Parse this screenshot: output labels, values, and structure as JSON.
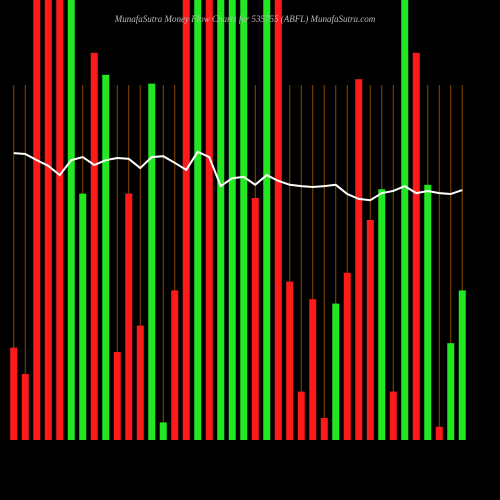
{
  "chart_data": {
    "type": "bar",
    "title": "MunafaSutra Money Flow Charts for 535755 (ABFL) MunafaSutra.com",
    "categories": [
      null,
      null,
      null,
      null,
      null,
      null,
      null,
      null,
      null,
      null,
      null,
      null,
      null,
      null,
      null,
      null,
      null,
      null,
      null,
      null,
      null,
      null,
      null,
      null,
      null,
      null,
      null,
      null,
      null,
      null,
      null,
      null,
      null,
      null,
      null,
      null,
      null,
      null,
      null,
      null
    ],
    "values": [
      21,
      15,
      100,
      100,
      100,
      100,
      56,
      88,
      83,
      20,
      56,
      26,
      81,
      4,
      34,
      100,
      100,
      100,
      100,
      100,
      100,
      55,
      100,
      100,
      36,
      11,
      32,
      5,
      31,
      38,
      82,
      50,
      57,
      11,
      100,
      88,
      58,
      3,
      22,
      34
    ],
    "colors": [
      "#ff1a1a",
      "#ff1a1a",
      "#ff1a1a",
      "#ff1a1a",
      "#ff1a1a",
      "#22e822",
      "#22e822",
      "#ff1a1a",
      "#22e822",
      "#ff1a1a",
      "#ff1a1a",
      "#ff1a1a",
      "#22e822",
      "#22e822",
      "#ff1a1a",
      "#ff1a1a",
      "#22e822",
      "#ff1a1a",
      "#22e822",
      "#22e822",
      "#22e822",
      "#ff1a1a",
      "#22e822",
      "#ff1a1a",
      "#ff1a1a",
      "#ff1a1a",
      "#ff1a1a",
      "#ff1a1a",
      "#22e822",
      "#ff1a1a",
      "#ff1a1a",
      "#ff1a1a",
      "#22e822",
      "#ff1a1a",
      "#22e822",
      "#ff1a1a",
      "#22e822",
      "#ff1a1a",
      "#22e822",
      "#22e822"
    ],
    "line": {
      "color": "#ffffff",
      "values": [
        65.2,
        65,
        63.6,
        62.3,
        60.2,
        63.6,
        64.3,
        62.5,
        63.6,
        64.1,
        63.9,
        61.8,
        64.3,
        64.5,
        63,
        61.4,
        65.5,
        64.3,
        57.7,
        59.5,
        59.8,
        58,
        60.2,
        58.9,
        58,
        57.7,
        57.5,
        57.7,
        58,
        55.9,
        54.8,
        54.5,
        56.1,
        56.6,
        57.7,
        56.1,
        56.6,
        56.1,
        55.9,
        56.8
      ]
    },
    "ylim": [
      0,
      100
    ]
  }
}
